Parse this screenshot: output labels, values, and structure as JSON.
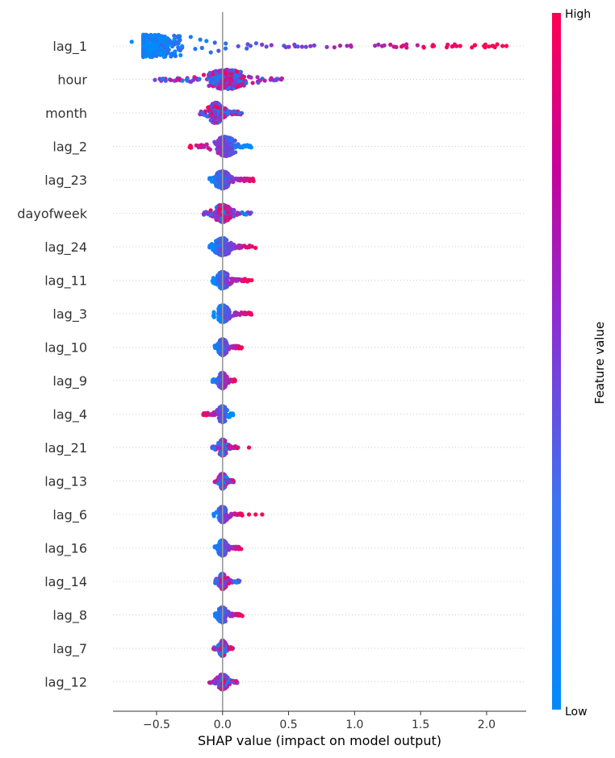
{
  "chart_data": {
    "type": "scatter",
    "subtype": "shap-beeswarm",
    "xlabel": "SHAP value (impact on model output)",
    "xlim": [
      -0.83,
      2.3
    ],
    "xticks": [
      -0.5,
      0.0,
      0.5,
      1.0,
      1.5,
      2.0
    ],
    "xtick_labels": [
      "−0.5",
      "0.0",
      "0.5",
      "1.0",
      "1.5",
      "2.0"
    ],
    "zero_line": 0.0,
    "grid": "dotted horizontal guide per feature",
    "colorbar": {
      "title": "Feature value",
      "high_label": "High",
      "low_label": "Low",
      "colors": [
        "#008bfb",
        "#ff0052"
      ]
    },
    "features": [
      {
        "name": "lag_1",
        "range": [
          -0.7,
          2.15
        ],
        "dense": [
          -0.6,
          0.45
        ],
        "peak": -0.55,
        "width": 1.0,
        "correlation": "positive",
        "outliers": [
          1.6,
          1.75,
          1.8,
          1.98,
          2.05,
          2.12,
          2.15
        ]
      },
      {
        "name": "hour",
        "range": [
          -0.52,
          0.45
        ],
        "dense": [
          -0.3,
          0.35
        ],
        "peak": 0.03,
        "width": 0.75,
        "correlation": "mixed",
        "outliers": []
      },
      {
        "name": "month",
        "range": [
          -0.18,
          0.15
        ],
        "dense": [
          -0.12,
          0.08
        ],
        "peak": -0.05,
        "width": 0.85,
        "correlation": "mixed",
        "outliers": []
      },
      {
        "name": "lag_2",
        "range": [
          -0.25,
          0.22
        ],
        "dense": [
          -0.12,
          0.15
        ],
        "peak": 0.02,
        "width": 0.75,
        "correlation": "negative",
        "outliers": []
      },
      {
        "name": "lag_23",
        "range": [
          -0.1,
          0.25
        ],
        "dense": [
          -0.05,
          0.2
        ],
        "peak": 0.0,
        "width": 0.6,
        "correlation": "positive",
        "outliers": []
      },
      {
        "name": "dayofweek",
        "range": [
          -0.15,
          0.22
        ],
        "dense": [
          -0.1,
          0.15
        ],
        "peak": 0.0,
        "width": 0.6,
        "correlation": "mixed",
        "outliers": []
      },
      {
        "name": "lag_24",
        "range": [
          -0.1,
          0.25
        ],
        "dense": [
          -0.05,
          0.2
        ],
        "peak": 0.0,
        "width": 0.6,
        "correlation": "positive",
        "outliers": []
      },
      {
        "name": "lag_11",
        "range": [
          -0.08,
          0.2
        ],
        "dense": [
          -0.04,
          0.12
        ],
        "peak": 0.0,
        "width": 0.55,
        "correlation": "positive",
        "outliers": [
          0.2,
          0.22
        ]
      },
      {
        "name": "lag_3",
        "range": [
          -0.07,
          0.22
        ],
        "dense": [
          -0.03,
          0.15
        ],
        "peak": 0.0,
        "width": 0.55,
        "correlation": "positive",
        "outliers": []
      },
      {
        "name": "lag_10",
        "range": [
          -0.06,
          0.15
        ],
        "dense": [
          -0.03,
          0.1
        ],
        "peak": 0.0,
        "width": 0.5,
        "correlation": "positive",
        "outliers": []
      },
      {
        "name": "lag_9",
        "range": [
          -0.08,
          0.1
        ],
        "dense": [
          -0.05,
          0.07
        ],
        "peak": 0.0,
        "width": 0.5,
        "correlation": "positive",
        "outliers": []
      },
      {
        "name": "lag_4",
        "range": [
          -0.15,
          0.08
        ],
        "dense": [
          -0.05,
          0.05
        ],
        "peak": 0.0,
        "width": 0.5,
        "correlation": "negative",
        "outliers": []
      },
      {
        "name": "lag_21",
        "range": [
          -0.08,
          0.12
        ],
        "dense": [
          -0.04,
          0.06
        ],
        "peak": 0.0,
        "width": 0.5,
        "correlation": "mixed",
        "outliers": [
          0.2
        ]
      },
      {
        "name": "lag_13",
        "range": [
          -0.06,
          0.09
        ],
        "dense": [
          -0.03,
          0.06
        ],
        "peak": 0.0,
        "width": 0.45,
        "correlation": "mixed",
        "outliers": []
      },
      {
        "name": "lag_6",
        "range": [
          -0.07,
          0.15
        ],
        "dense": [
          -0.03,
          0.08
        ],
        "peak": 0.0,
        "width": 0.45,
        "correlation": "positive",
        "outliers": [
          0.2,
          0.25,
          0.3
        ]
      },
      {
        "name": "lag_16",
        "range": [
          -0.06,
          0.15
        ],
        "dense": [
          -0.03,
          0.1
        ],
        "peak": 0.0,
        "width": 0.45,
        "correlation": "positive",
        "outliers": []
      },
      {
        "name": "lag_14",
        "range": [
          -0.06,
          0.13
        ],
        "dense": [
          -0.03,
          0.07
        ],
        "peak": 0.0,
        "width": 0.45,
        "correlation": "mixed",
        "outliers": []
      },
      {
        "name": "lag_8",
        "range": [
          -0.06,
          0.15
        ],
        "dense": [
          -0.03,
          0.08
        ],
        "peak": 0.0,
        "width": 0.45,
        "correlation": "positive",
        "outliers": []
      },
      {
        "name": "lag_7",
        "range": [
          -0.07,
          0.08
        ],
        "dense": [
          -0.04,
          0.05
        ],
        "peak": 0.0,
        "width": 0.45,
        "correlation": "mixed",
        "outliers": []
      },
      {
        "name": "lag_12",
        "range": [
          -0.1,
          0.12
        ],
        "dense": [
          -0.04,
          0.08
        ],
        "peak": 0.0,
        "width": 0.45,
        "correlation": "mixed",
        "outliers": []
      }
    ]
  }
}
